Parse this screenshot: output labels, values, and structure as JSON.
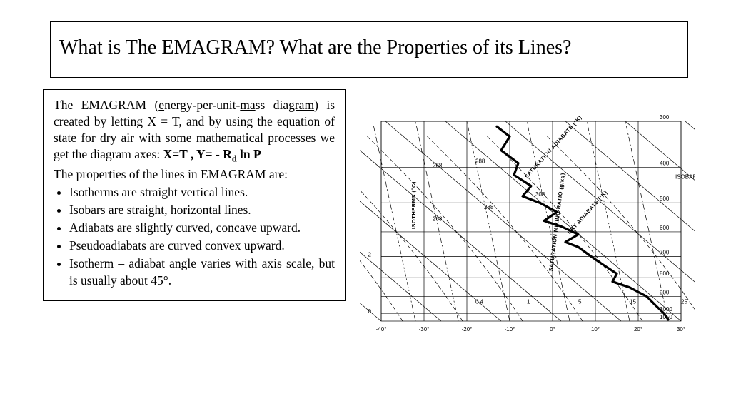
{
  "title": "What is The EMAGRAM? What are the Properties of its Lines?",
  "intro": {
    "seg1": "The EMAGRAM (",
    "u1": "e",
    "seg2": "nergy-per-unit-",
    "u2": "ma",
    "seg3": "ss dia",
    "u3": "gram",
    "seg4": ") is created by letting X = T, and by using the equation of state for dry air with some mathematical processes we get the diagram axes:  ",
    "eq_pre": "X=T , Y= - R",
    "eq_sub": "d",
    "eq_post": " ln P"
  },
  "lead2": "The properties of the lines in EMAGRAM are:",
  "bullets": [
    "Isotherms are straight vertical lines.",
    "Isobars are straight, horizontal lines.",
    "Adiabats are slightly curved, concave upward.",
    "Pseudoadiabats are curved convex upward.",
    "Isotherm – adiabat angle varies with axis scale, but is usually about 45°."
  ],
  "chart": {
    "type": "diagram",
    "background_color": "#ffffff",
    "grid_color": "#000000",
    "line_color": "#000000",
    "xlim": [
      -40,
      30
    ],
    "ylim_pressure_mb": [
      1050,
      300
    ],
    "x_ticks": [
      -40,
      -30,
      -20,
      -10,
      0,
      10,
      20,
      30
    ],
    "x_tick_labels": [
      "-40°",
      "-30°",
      "-20°",
      "-10°",
      "0°",
      "10°",
      "20°",
      "30°"
    ],
    "isobars_mb": [
      300,
      400,
      500,
      600,
      700,
      800,
      900,
      1000
    ],
    "annotations": {
      "isobars_label": "ISOBARS (mb)",
      "isotherms_label": "ISOTHERMS (°C)",
      "dry_adiabats_label": "DRY ADIABATS (°K)",
      "sat_adiabats_label": "SATURATION ADIABATS (°K)",
      "mixing_ratio_label": "SATURATION MIXING RATIO (g/kg)",
      "dry_adiabat_values": [
        "268",
        "288",
        "308"
      ],
      "sat_adiabat_values": [
        "268",
        "288"
      ],
      "mixing_ratio_values": [
        "0.4",
        "1",
        "5",
        "15",
        "25"
      ],
      "isobar_values": [
        "300",
        "400",
        "500",
        "600",
        "700",
        "800",
        "900",
        "1000",
        "1050"
      ]
    },
    "left_scale_labels": [
      "0",
      "2"
    ],
    "title_fontsize": 8,
    "tick_fontsize": 8,
    "sounding_path": [
      [
        27,
        1040
      ],
      [
        26,
        1000
      ],
      [
        24,
        950
      ],
      [
        22,
        900
      ],
      [
        18,
        850
      ],
      [
        14,
        820
      ],
      [
        15,
        780
      ],
      [
        12,
        740
      ],
      [
        9,
        700
      ],
      [
        6,
        660
      ],
      [
        3,
        640
      ],
      [
        6,
        610
      ],
      [
        2,
        580
      ],
      [
        -2,
        560
      ],
      [
        1,
        530
      ],
      [
        -3,
        500
      ],
      [
        -7,
        480
      ],
      [
        -5,
        450
      ],
      [
        -9,
        420
      ],
      [
        -8,
        390
      ],
      [
        -12,
        360
      ],
      [
        -10,
        330
      ],
      [
        -13,
        310
      ]
    ]
  }
}
